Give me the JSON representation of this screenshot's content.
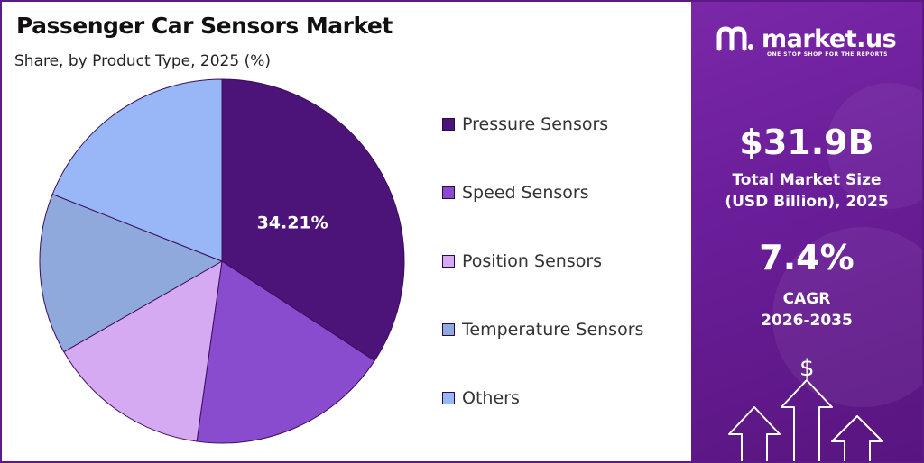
{
  "header": {
    "title": "Passenger Car Sensors Market",
    "subtitle": "Share, by Product Type, 2025 (%)"
  },
  "chart_data": {
    "type": "pie",
    "title": "Passenger Car Sensors Market",
    "subtitle": "Share, by Product Type, 2025 (%)",
    "categories": [
      "Pressure Sensors",
      "Speed Sensors",
      "Position Sensors",
      "Temperature Sensors",
      "Others"
    ],
    "values": [
      34.21,
      18.0,
      14.5,
      14.3,
      19.0
    ],
    "colors": [
      "#4c1479",
      "#8a4ccf",
      "#d6aaf2",
      "#8fa9dc",
      "#99b6f6"
    ],
    "data_labels": [
      "34.21%",
      "",
      "",
      "",
      ""
    ],
    "legend_position": "right"
  },
  "legend": {
    "items": [
      {
        "label": "Pressure Sensors",
        "color": "#4c1479"
      },
      {
        "label": "Speed Sensors",
        "color": "#8a4ccf"
      },
      {
        "label": "Position Sensors",
        "color": "#d6aaf2"
      },
      {
        "label": "Temperature Sensors",
        "color": "#8fa9dc"
      },
      {
        "label": "Others",
        "color": "#99b6f6"
      }
    ]
  },
  "sidebar": {
    "brand": "market.us",
    "tagline": "ONE STOP SHOP FOR THE REPORTS",
    "market_size_value": "$31.9B",
    "market_size_label_1": "Total Market Size",
    "market_size_label_2": "(USD Billion), 2025",
    "cagr_value": "7.4%",
    "cagr_label_1": "CAGR",
    "cagr_label_2": "2026-2035",
    "dollar_symbol": "$",
    "accent_color": "#6a1d98"
  }
}
